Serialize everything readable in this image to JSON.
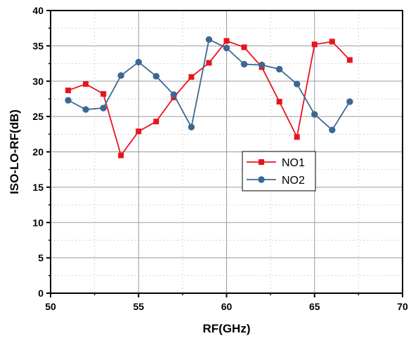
{
  "chart_data": {
    "type": "line",
    "title": "",
    "xlabel": "RF(GHz)",
    "ylabel": "ISO-LO-RF(dB)",
    "xlim": [
      50,
      70
    ],
    "ylim": [
      0,
      40
    ],
    "xticks": [
      "50",
      "55",
      "60",
      "65",
      "70"
    ],
    "yticks": [
      "0",
      "5",
      "10",
      "15",
      "20",
      "25",
      "30",
      "35",
      "40"
    ],
    "grid": true,
    "legend_position": "center-right",
    "series": [
      {
        "name": "NO1",
        "color": "#e8141c",
        "marker": "square",
        "x": [
          51,
          52,
          53,
          54,
          55,
          56,
          57,
          58,
          59,
          60,
          61,
          62,
          63,
          64,
          65,
          66,
          67
        ],
        "y": [
          28.7,
          29.6,
          28.2,
          19.5,
          22.9,
          24.3,
          27.7,
          30.6,
          32.6,
          35.7,
          34.8,
          32.0,
          27.1,
          22.1,
          35.2,
          35.6,
          33.0
        ]
      },
      {
        "name": "NO2",
        "color": "#3b6894",
        "marker": "circle",
        "x": [
          51,
          52,
          53,
          54,
          55,
          56,
          57,
          58,
          59,
          60,
          61,
          62,
          63,
          64,
          65,
          66,
          67
        ],
        "y": [
          27.3,
          26.0,
          26.2,
          30.8,
          32.7,
          30.7,
          28.1,
          23.5,
          35.9,
          34.7,
          32.4,
          32.3,
          31.7,
          29.6,
          25.3,
          23.1,
          27.1
        ]
      }
    ]
  }
}
